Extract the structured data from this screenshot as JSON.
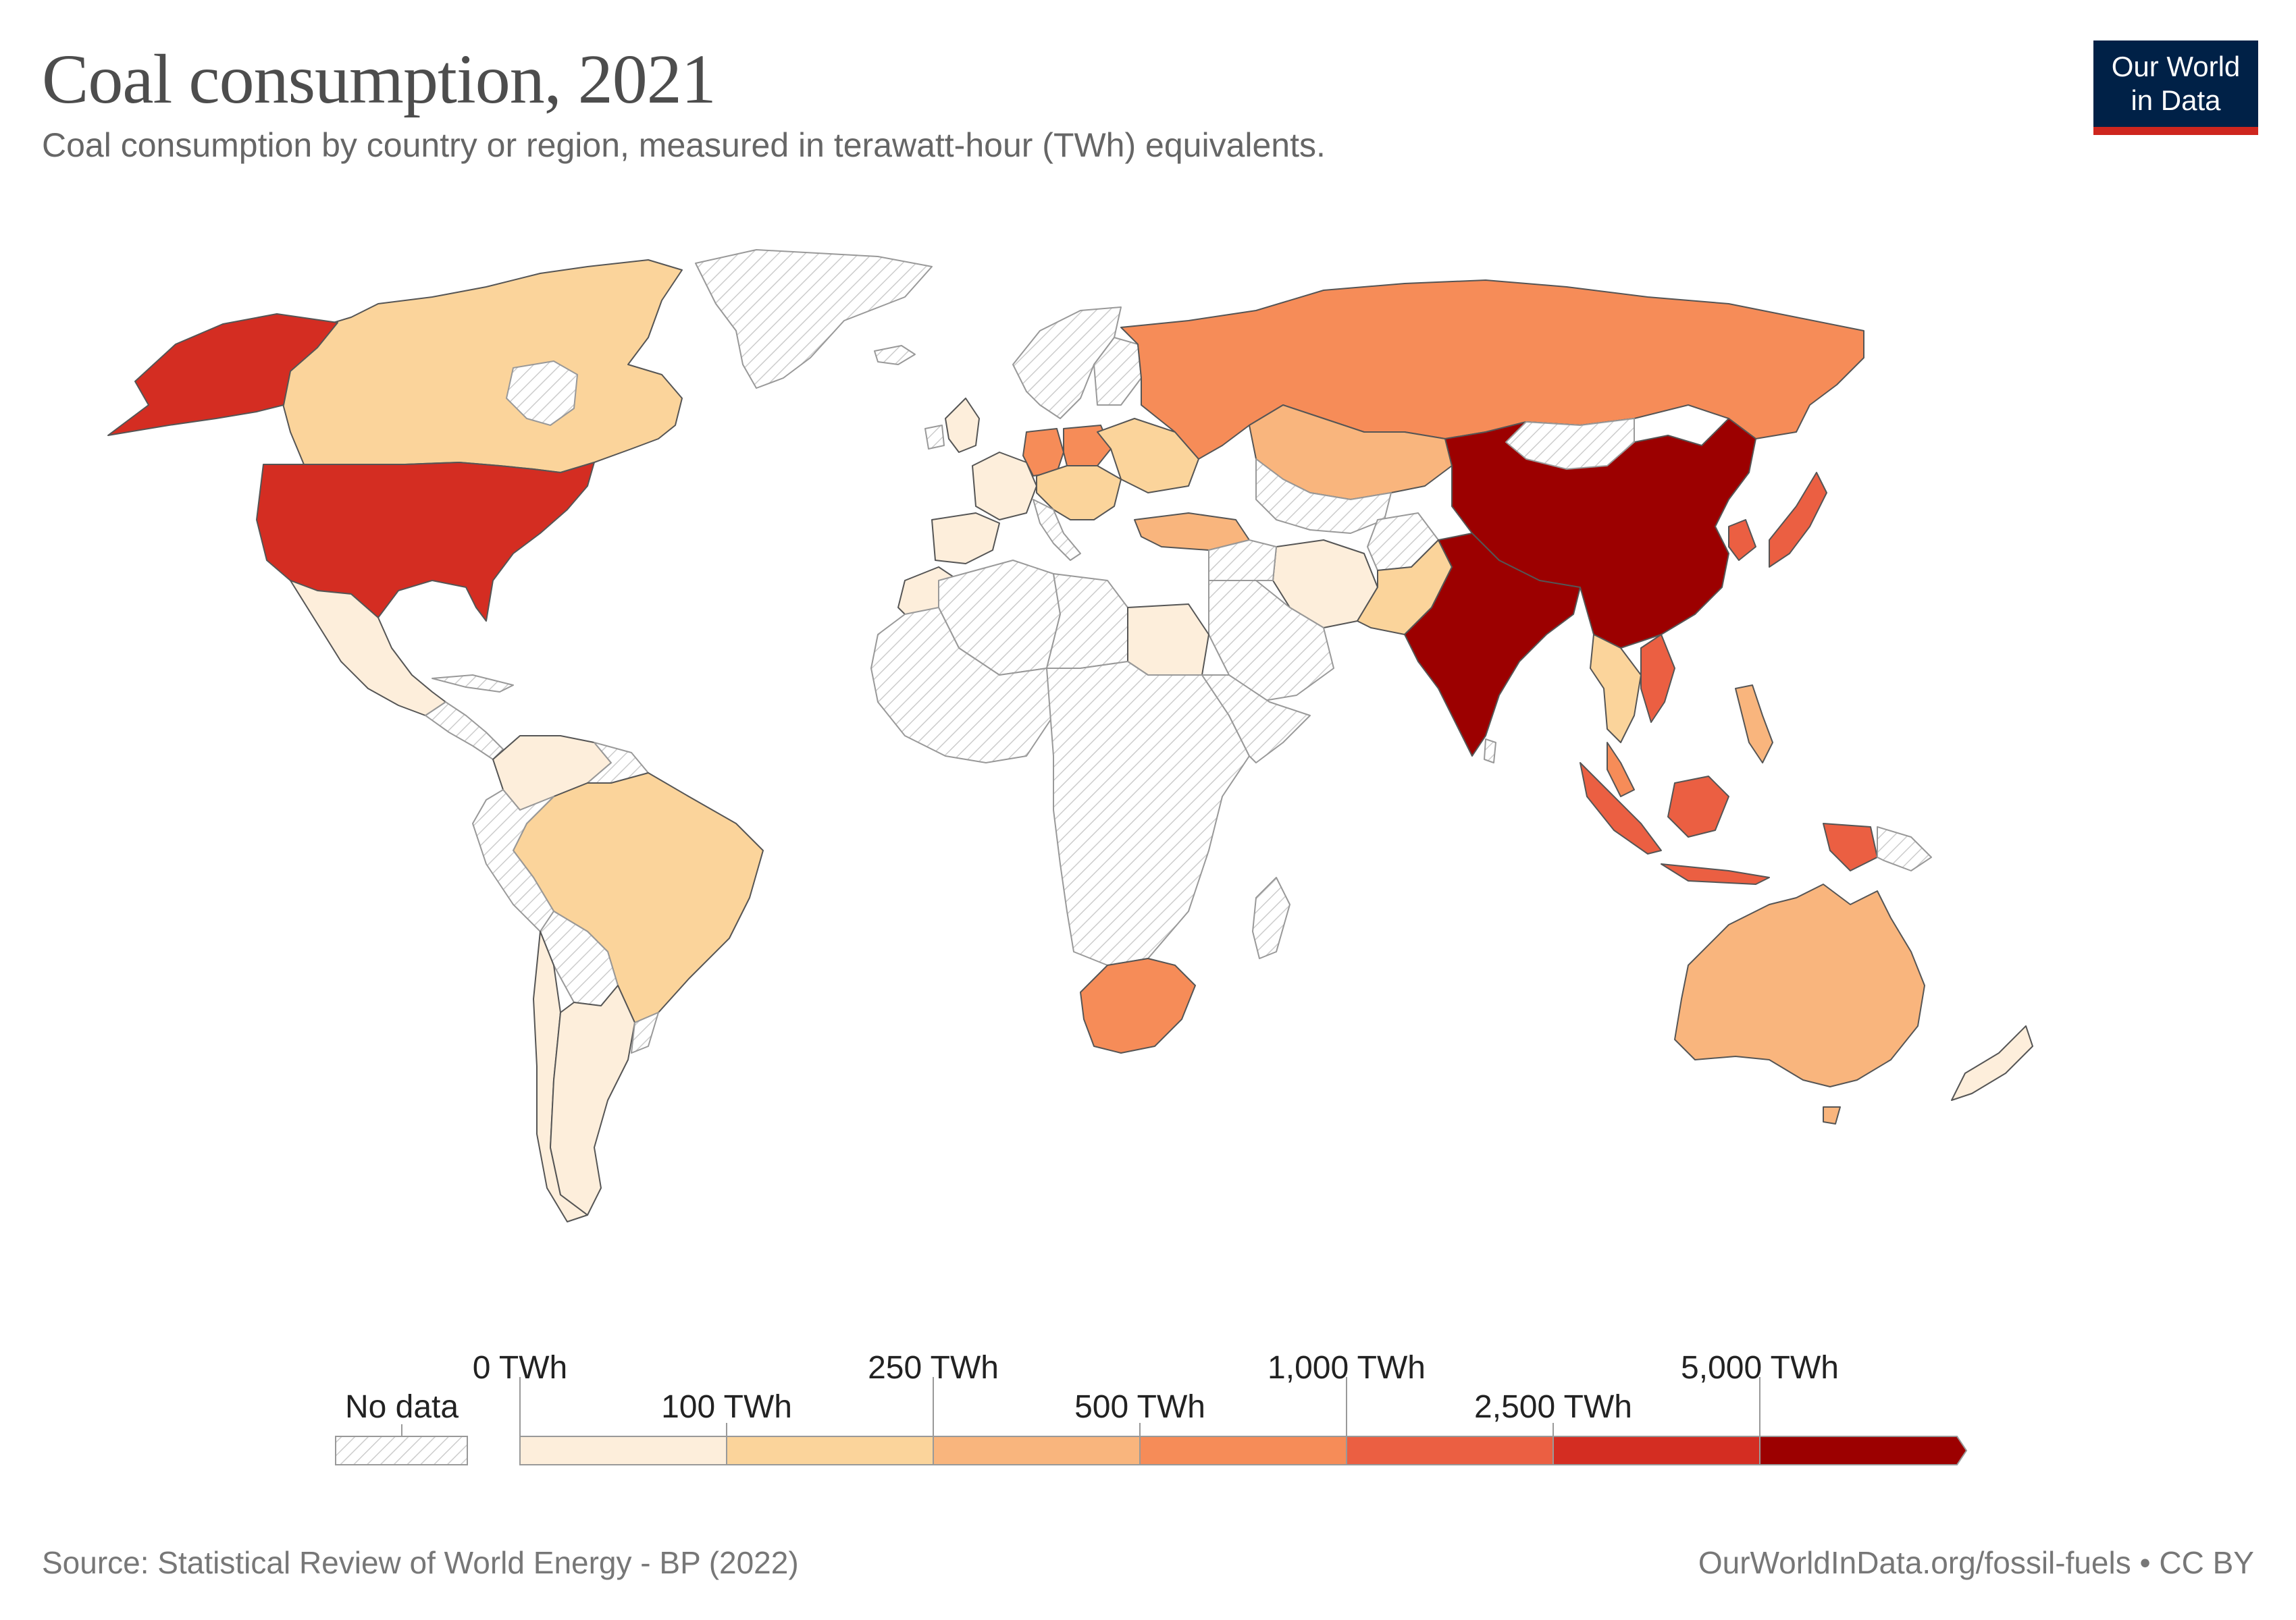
{
  "header": {
    "title": "Coal consumption, 2021",
    "subtitle": "Coal consumption by country or region, measured in terawatt-hour (TWh) equivalents.",
    "logo_line1": "Our World",
    "logo_line2": "in Data"
  },
  "legend": {
    "no_data_label": "No data",
    "thresholds_top": [
      "0 TWh",
      "250 TWh",
      "1,000 TWh",
      "5,000 TWh"
    ],
    "thresholds_bottom": [
      "100 TWh",
      "500 TWh",
      "2,500 TWh"
    ],
    "colors": [
      "#fdeedb",
      "#fbd49b",
      "#f9b57d",
      "#f68c58",
      "#eb5f42",
      "#d42d22",
      "#9c0000"
    ]
  },
  "footer": {
    "source": "Source: Statistical Review of World Energy - BP (2022)",
    "credit": "OurWorldInData.org/fossil-fuels • CC BY"
  },
  "colors": {
    "no_data_fill": "#ffffff",
    "hatch": "#c8c8c8",
    "border": "#555555"
  },
  "chart_data": {
    "type": "choropleth",
    "year": 2021,
    "unit": "TWh",
    "bins": [
      {
        "from": 0,
        "to": 100
      },
      {
        "from": 100,
        "to": 250
      },
      {
        "from": 250,
        "to": 500
      },
      {
        "from": 500,
        "to": 1000
      },
      {
        "from": 1000,
        "to": 2500
      },
      {
        "from": 2500,
        "to": 5000
      },
      {
        "from": 5000,
        "to": null
      }
    ],
    "regions": [
      {
        "name": "China",
        "bin": 6
      },
      {
        "name": "India",
        "bin": 6
      },
      {
        "name": "United States",
        "bin": 5
      },
      {
        "name": "Japan",
        "bin": 4
      },
      {
        "name": "South Korea",
        "bin": 4
      },
      {
        "name": "Indonesia",
        "bin": 4
      },
      {
        "name": "Vietnam",
        "bin": 4
      },
      {
        "name": "Russia",
        "bin": 3
      },
      {
        "name": "South Africa",
        "bin": 3
      },
      {
        "name": "Germany",
        "bin": 3
      },
      {
        "name": "Poland",
        "bin": 3
      },
      {
        "name": "Kazakhstan",
        "bin": 2
      },
      {
        "name": "Australia",
        "bin": 2
      },
      {
        "name": "Turkey",
        "bin": 2
      },
      {
        "name": "Taiwan",
        "bin": 3
      },
      {
        "name": "Malaysia",
        "bin": 3
      },
      {
        "name": "Canada",
        "bin": 1
      },
      {
        "name": "Brazil",
        "bin": 1
      },
      {
        "name": "Ukraine",
        "bin": 1
      },
      {
        "name": "Philippines",
        "bin": 2
      },
      {
        "name": "Thailand",
        "bin": 1
      },
      {
        "name": "Pakistan",
        "bin": 1
      },
      {
        "name": "Czechia",
        "bin": 1
      },
      {
        "name": "Mexico",
        "bin": 0
      },
      {
        "name": "Colombia",
        "bin": 0
      },
      {
        "name": "Chile",
        "bin": 0
      },
      {
        "name": "Argentina",
        "bin": 0
      },
      {
        "name": "France",
        "bin": 0
      },
      {
        "name": "Spain",
        "bin": 0
      },
      {
        "name": "United Kingdom",
        "bin": 0
      },
      {
        "name": "Iran",
        "bin": 0
      },
      {
        "name": "Egypt",
        "bin": 0
      },
      {
        "name": "Morocco",
        "bin": 0
      },
      {
        "name": "New Zealand",
        "bin": 0
      }
    ]
  }
}
